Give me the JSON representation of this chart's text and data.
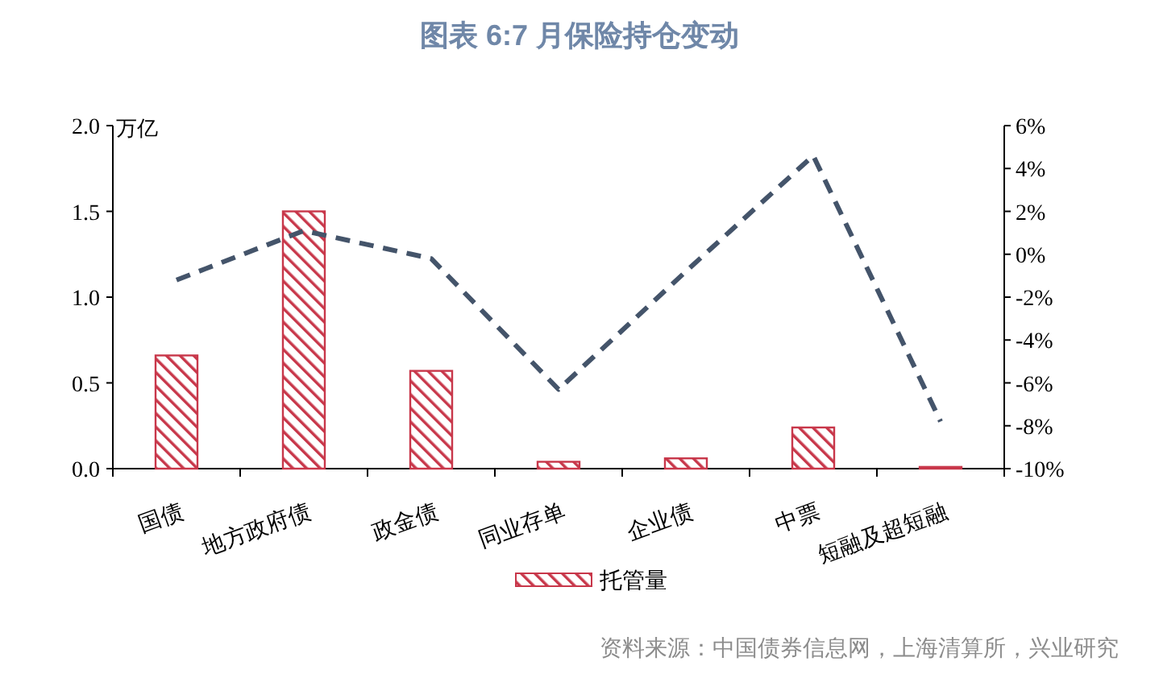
{
  "chart_data": {
    "type": "bar",
    "title": "图表 6:7 月保险持仓变动",
    "categories": [
      "国债",
      "地方政府债",
      "政金债",
      "同业存单",
      "企业债",
      "中票",
      "短融及超短融"
    ],
    "series": [
      {
        "name": "托管量",
        "color": "#c8374a",
        "values": [
          0.66,
          1.5,
          0.57,
          0.04,
          0.06,
          0.24,
          0.01
        ]
      },
      {
        "type": "line",
        "axis": "y2",
        "color": "#44546a",
        "line_style": "dashed",
        "values": [
          -1.2,
          1.1,
          -0.2,
          -6.3,
          -0.8,
          4.6,
          -7.8
        ]
      }
    ],
    "ylabel": "万亿",
    "ylim": [
      0,
      2
    ],
    "yticks": [
      {
        "value": 0,
        "label": "0.0"
      },
      {
        "value": 0.5,
        "label": "0.5"
      },
      {
        "value": 1,
        "label": "1.0"
      },
      {
        "value": 1.5,
        "label": "1.5"
      },
      {
        "value": 2,
        "label": "2.0"
      }
    ],
    "y2lim": [
      -10,
      6
    ],
    "y2ticks": [
      {
        "value": -10,
        "label": "-10%"
      },
      {
        "value": -8,
        "label": "-8%"
      },
      {
        "value": -6,
        "label": "-6%"
      },
      {
        "value": -4,
        "label": "-4%"
      },
      {
        "value": -2,
        "label": "-2%"
      },
      {
        "value": 0,
        "label": "0%"
      },
      {
        "value": 2,
        "label": "2%"
      },
      {
        "value": 4,
        "label": "4%"
      },
      {
        "value": 6,
        "label": "6%"
      }
    ],
    "legend": "bottom",
    "grid": false,
    "marker": "none",
    "annotations": [
      "资料来源：中国债券信息网，上海清算所，兴业研究"
    ]
  }
}
